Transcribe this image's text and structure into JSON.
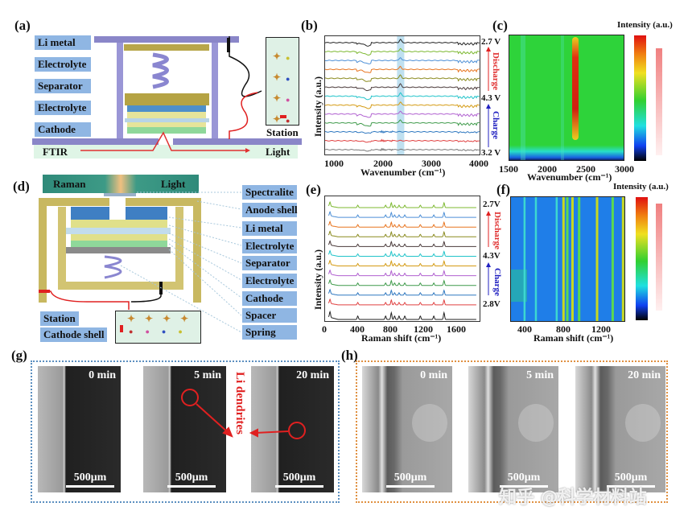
{
  "panels": {
    "a": "(a)",
    "b": "(b)",
    "c": "(c)",
    "d": "(d)",
    "e": "(e)",
    "f": "(f)",
    "g": "(g)",
    "h": "(h)"
  },
  "panel_a": {
    "labels": [
      "Li metal",
      "Electrolyte",
      "Separator",
      "Electrolyte",
      "Cathode"
    ],
    "station": "Station",
    "ftir": "FTIR",
    "light": "Light"
  },
  "panel_d": {
    "raman": "Raman",
    "light": "Light",
    "labels": [
      "Spectralite",
      "Anode shell",
      "Li metal",
      "Electrolyte",
      "Separator",
      "Electrolyte",
      "Cathode",
      "Spacer",
      "Spring"
    ],
    "station": "Station",
    "cathode_shell": "Cathode shell"
  },
  "chart_data": [
    {
      "id": "b",
      "type": "line",
      "xlabel": "Wavenumber (cm⁻¹)",
      "ylabel": "Intensity (a.u.)",
      "xlim": [
        800,
        4000
      ],
      "xticks": [
        "1000",
        "2000",
        "3000",
        "4000"
      ],
      "series_colors": [
        "#222222",
        "#7cb82f",
        "#4d8fd6",
        "#e8741e",
        "#8a8a1e",
        "#4a3a3a",
        "#1fc3c9",
        "#d49a12",
        "#b060d0",
        "#3e9a4a",
        "#2f78c0",
        "#e04040",
        "#777777"
      ],
      "highlight_band": [
        2290,
        2440
      ],
      "voltage_labels": [
        "2.7 V",
        "4.3 V",
        "3.2 V"
      ],
      "arrows": {
        "discharge": "Discharge",
        "charge": "Charge"
      }
    },
    {
      "id": "c",
      "type": "heatmap",
      "xlabel": "Wavenumber (cm⁻¹)",
      "xlim": [
        1500,
        3000
      ],
      "xticks": [
        "1500",
        "2000",
        "2500",
        "3000"
      ],
      "colorbar_label": "Intensity (a.u.)",
      "peak_position": 2340
    },
    {
      "id": "e",
      "type": "line",
      "xlabel": "Raman shift (cm⁻¹)",
      "ylabel": "Intensity (a.u.)",
      "xlim": [
        0,
        1890
      ],
      "xticks": [
        "0",
        "400",
        "800",
        "1200",
        "1600"
      ],
      "series_colors": [
        "#7cb82f",
        "#4d8fd6",
        "#e8741e",
        "#8a8a1e",
        "#4a3a3a",
        "#1fc3c9",
        "#d49a12",
        "#b060d0",
        "#3e9a4a",
        "#2f78c0",
        "#e04040",
        "#222222"
      ],
      "peaks": [
        60,
        400,
        740,
        810,
        850,
        905,
        975,
        1165,
        1330,
        1455
      ],
      "voltage_labels": [
        "2.7V",
        "4.3V",
        "2.8V"
      ],
      "arrows": {
        "discharge": "Discharge",
        "charge": "Charge"
      }
    },
    {
      "id": "f",
      "type": "heatmap",
      "xlabel": "Raman shift (cm⁻¹)",
      "xlim": [
        250,
        1450
      ],
      "xticks": [
        "400",
        "800",
        "1200"
      ],
      "colorbar_label": "Intensity (a.u.)",
      "stripes": [
        400,
        520,
        740,
        810,
        850,
        905,
        975,
        1165,
        1330,
        1440
      ]
    }
  ],
  "panel_g": {
    "times": [
      "0 min",
      "5 min",
      "20 min"
    ],
    "scale": "500μm",
    "annotation": "Li dendrites",
    "accent": "#e02020",
    "border": "#5b8fc0"
  },
  "panel_h": {
    "times": [
      "0 min",
      "5 min",
      "20 min"
    ],
    "scale": "500μm",
    "border": "#e09040"
  },
  "watermark": "知乎 @科学材料站"
}
